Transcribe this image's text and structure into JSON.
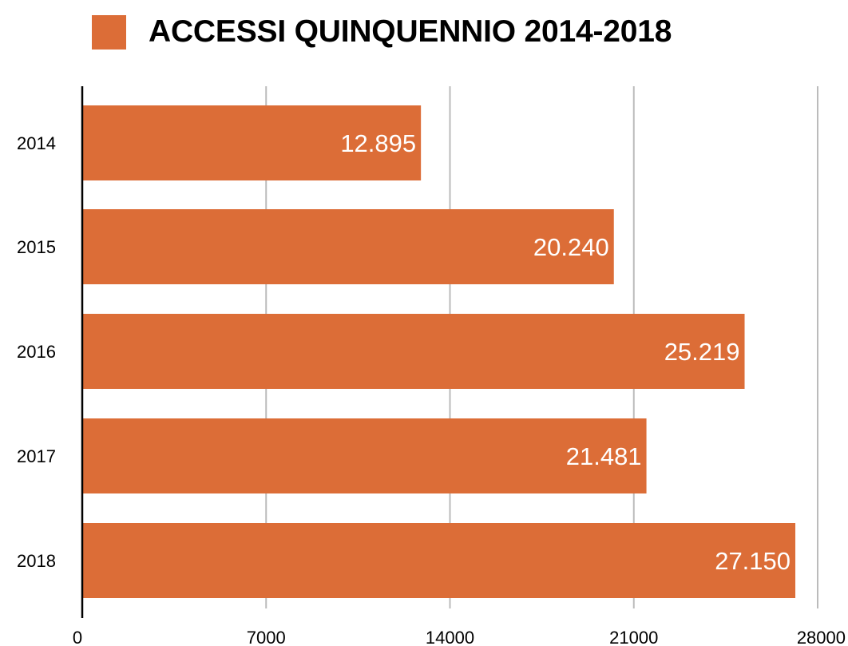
{
  "chart_data": {
    "type": "bar",
    "orientation": "horizontal",
    "categories": [
      "2014",
      "2015",
      "2016",
      "2017",
      "2018"
    ],
    "series": [
      {
        "name": "ACCESSI QUINQUENNIO 2014-2018",
        "values": [
          12895,
          20240,
          25219,
          21481,
          27150
        ]
      }
    ],
    "data_labels": [
      "12.895",
      "20.240",
      "25.219",
      "21.481",
      "27.150"
    ],
    "x_ticks": [
      0,
      7000,
      14000,
      21000,
      28000
    ],
    "xlim": [
      0,
      28000
    ],
    "grid": "vertical",
    "legend_position": "top",
    "title": "",
    "xlabel": "",
    "ylabel": "",
    "colors": {
      "bar": "#DC6D37",
      "grid": "#BBBBBB",
      "axis": "#000000",
      "data_label": "#FFFFFF"
    }
  }
}
